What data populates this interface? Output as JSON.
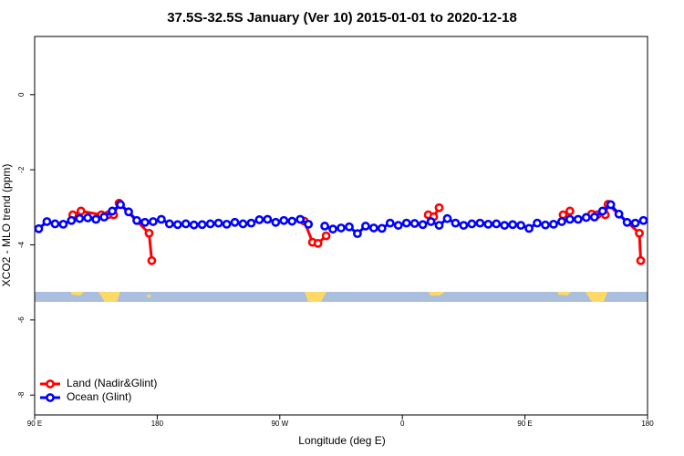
{
  "chart_data": {
    "type": "line",
    "title": "37.5S-32.5S January (Ver 10)   2015-01-01 to 2020-12-18",
    "x_label": "Longitude (deg E)",
    "y_label": "XCO2 - MLO trend (ppm)",
    "xlim": [
      90,
      540
    ],
    "ylim": [
      -8.53,
      1.55
    ],
    "xticks": [
      {
        "value": 90,
        "label": "90 E"
      },
      {
        "value": 180,
        "label": "180"
      },
      {
        "value": 270,
        "label": "90 W"
      },
      {
        "value": 360,
        "label": "0"
      },
      {
        "value": 450,
        "label": "90 E"
      },
      {
        "value": 540,
        "label": "180"
      }
    ],
    "yticks": [
      0,
      -2,
      -4,
      -6,
      -8
    ],
    "legend": "bottom-left",
    "series": [
      {
        "name": "Land (Nadir&Glint)",
        "color": "#ff0000",
        "x": [
          118,
          124,
          139,
          144,
          148,
          152,
          174,
          176,
          null,
          288,
          294,
          298,
          304,
          null,
          379,
          383,
          387,
          null,
          478,
          483,
          null,
          499,
          503,
          509,
          511,
          534,
          535
        ],
        "values": [
          -3.2,
          -3.1,
          -3.2,
          -3.2,
          -3.2,
          -2.89,
          -3.69,
          -4.42,
          null,
          -3.37,
          -3.93,
          -3.96,
          -3.76,
          null,
          -3.2,
          -3.25,
          -3.01,
          null,
          -3.2,
          -3.1,
          null,
          -3.18,
          -3.2,
          -3.2,
          -2.92,
          -3.69,
          -4.42
        ]
      },
      {
        "name": "Ocean (Glint)",
        "color": "#0000ff",
        "x": [
          93,
          99,
          105,
          111,
          117,
          123,
          129,
          135,
          141,
          147,
          153,
          159,
          165,
          171,
          177,
          183,
          189,
          195,
          201,
          207,
          213,
          219,
          225,
          231,
          237,
          243,
          249,
          255,
          261,
          267,
          273,
          279,
          285,
          291,
          297,
          303,
          309,
          315,
          321,
          327,
          333,
          339,
          345,
          351,
          357,
          363,
          369,
          375,
          381,
          387,
          393,
          399,
          405,
          411,
          417,
          423,
          429,
          435,
          441,
          447,
          453,
          459,
          465,
          471,
          477,
          483,
          489,
          495,
          501,
          507,
          513,
          519,
          525,
          531,
          537
        ],
        "values": [
          -3.57,
          -3.38,
          -3.44,
          -3.45,
          -3.35,
          -3.3,
          -3.28,
          -3.32,
          -3.26,
          -3.1,
          -2.93,
          -3.12,
          -3.35,
          -3.4,
          -3.38,
          -3.32,
          -3.44,
          -3.46,
          -3.44,
          -3.47,
          -3.46,
          -3.44,
          -3.42,
          -3.45,
          -3.4,
          -3.44,
          -3.42,
          -3.33,
          -3.32,
          -3.4,
          -3.35,
          -3.37,
          -3.32,
          -3.45,
          null,
          -3.5,
          -3.58,
          -3.55,
          -3.52,
          -3.7,
          -3.5,
          -3.55,
          -3.56,
          -3.42,
          -3.48,
          -3.42,
          -3.43,
          -3.46,
          -3.38,
          -3.48,
          -3.3,
          -3.42,
          -3.48,
          -3.44,
          -3.42,
          -3.45,
          -3.44,
          -3.48,
          -3.46,
          -3.48,
          -3.56,
          -3.42,
          -3.47,
          -3.45,
          -3.38,
          -3.32,
          -3.32,
          -3.27,
          -3.26,
          -3.1,
          -2.93,
          -3.18,
          -3.4,
          -3.42,
          -3.35
        ]
      }
    ]
  }
}
